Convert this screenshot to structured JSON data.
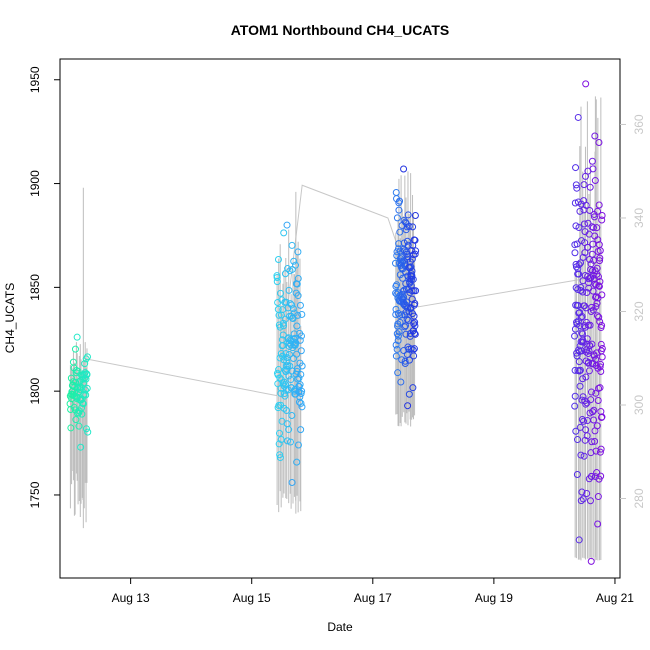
{
  "chart_data": {
    "type": "scatter",
    "title": "ATOM1 Northbound CH4_UCATS",
    "xlabel": "Date",
    "ylabel": "CH4_UCATS",
    "xlim": [
      "2016-08-11T20:00",
      "2016-08-21T02:00"
    ],
    "ylim": [
      1710,
      1960
    ],
    "x_ticks": [
      {
        "x": "2016-08-13",
        "label": "Aug 13"
      },
      {
        "x": "2016-08-15",
        "label": "Aug 15"
      },
      {
        "x": "2016-08-17",
        "label": "Aug 17"
      },
      {
        "x": "2016-08-19",
        "label": "Aug 19"
      },
      {
        "x": "2016-08-21",
        "label": "Aug 21"
      }
    ],
    "y_ticks": [
      1750,
      1800,
      1850,
      1900,
      1950
    ],
    "right_axis": {
      "ylim": [
        263,
        374
      ],
      "ticks": [
        280,
        300,
        320,
        340,
        360
      ],
      "color": "#c8c8c8"
    },
    "grid": false,
    "point_style": "open circle, colored by time (cyan-green to violet)",
    "line_color": "#c8c8c8",
    "secondary_line": {
      "description": "gray line on right axis",
      "points": [
        {
          "x": "2016-08-12T05:00",
          "y": 310
        },
        {
          "x": "2016-08-15T10:00",
          "y": 302
        },
        {
          "x": "2016-08-15T20:00",
          "y": 347
        },
        {
          "x": "2016-08-17T06:00",
          "y": 340
        },
        {
          "x": "2016-08-17T18:00",
          "y": 321
        },
        {
          "x": "2016-08-20T12:00",
          "y": 327
        }
      ]
    },
    "groups": [
      {
        "x_start": "2016-08-12T00:00",
        "x_end": "2016-08-12T07:00",
        "y_min": 1773,
        "y_max": 1826,
        "color_start": "#1ef0a0",
        "color_end": "#22e8c8",
        "n_points": 70,
        "error_bar_range": [
          1734,
          1898
        ]
      },
      {
        "x_start": "2016-08-15T10:00",
        "x_end": "2016-08-15T20:00",
        "y_min": 1756,
        "y_max": 1880,
        "color_start": "#2fd2f0",
        "color_end": "#33a6f5",
        "n_points": 150,
        "error_bar_range": [
          1741,
          1896
        ]
      },
      {
        "x_start": "2016-08-17T09:00",
        "x_end": "2016-08-17T17:00",
        "y_min": 1793,
        "y_max": 1907,
        "color_start": "#3080f0",
        "color_end": "#2233e0",
        "n_points": 160,
        "error_bar_range": [
          1783,
          1905
        ]
      },
      {
        "x_start": "2016-08-20T08:00",
        "x_end": "2016-08-20T19:00",
        "y_min": 1718,
        "y_max": 1948,
        "color_start": "#5030e8",
        "color_end": "#8010e0",
        "n_points": 230,
        "error_bar_range": [
          1720,
          1942
        ]
      }
    ]
  }
}
